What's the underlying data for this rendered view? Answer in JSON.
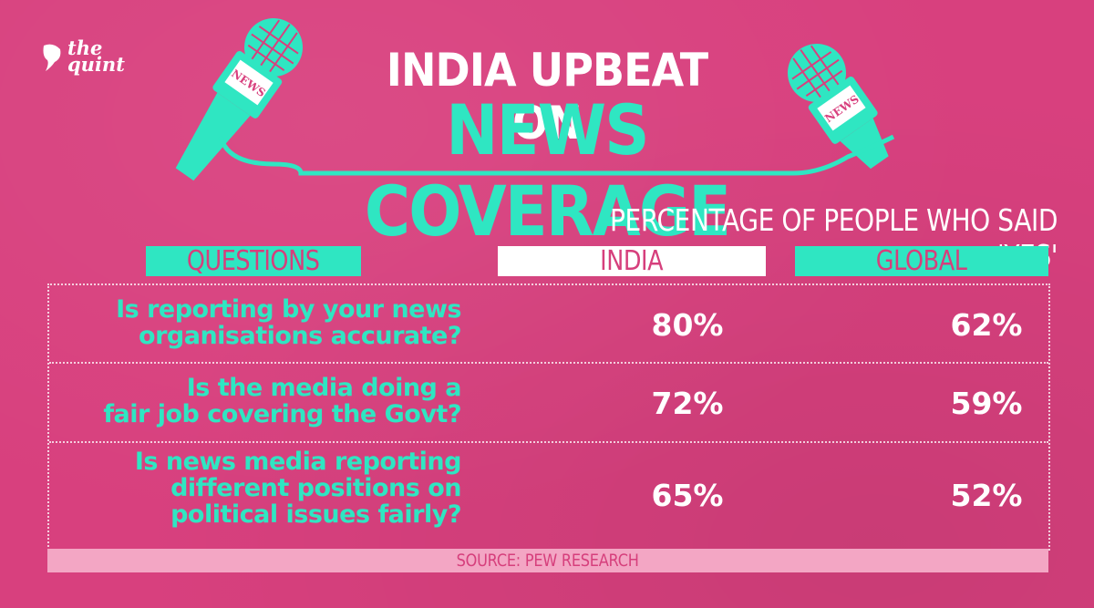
{
  "brand": {
    "line1": "the",
    "line2": "quint"
  },
  "title": {
    "line1": "INDIA UPBEAT ON",
    "line2": "NEWS COVERAGE"
  },
  "mic_label": "NEWS",
  "colors": {
    "background": "#d8407e",
    "accent": "#2fe6c2",
    "white": "#ffffff",
    "source_bar": "#f3a6c4"
  },
  "chart_data": {
    "type": "table",
    "title": "INDIA UPBEAT ON NEWS COVERAGE",
    "subtitle": "PERCENTAGE OF PEOPLE WHO SAID 'YES'",
    "columns": [
      "QUESTIONS",
      "INDIA",
      "GLOBAL"
    ],
    "rows": [
      {
        "question": [
          "Is reporting by your news",
          "organisations accurate?"
        ],
        "india": "80%",
        "global": "62%"
      },
      {
        "question": [
          "Is the media doing a",
          "fair job covering the Govt?"
        ],
        "india": "72%",
        "global": "59%"
      },
      {
        "question": [
          "Is news media reporting",
          "different positions on",
          "political issues fairly?"
        ],
        "india": "65%",
        "global": "52%"
      }
    ],
    "series": [
      {
        "name": "INDIA",
        "values": [
          80,
          72,
          65
        ]
      },
      {
        "name": "GLOBAL",
        "values": [
          62,
          59,
          52
        ]
      }
    ],
    "source": "SOURCE: PEW RESEARCH"
  }
}
